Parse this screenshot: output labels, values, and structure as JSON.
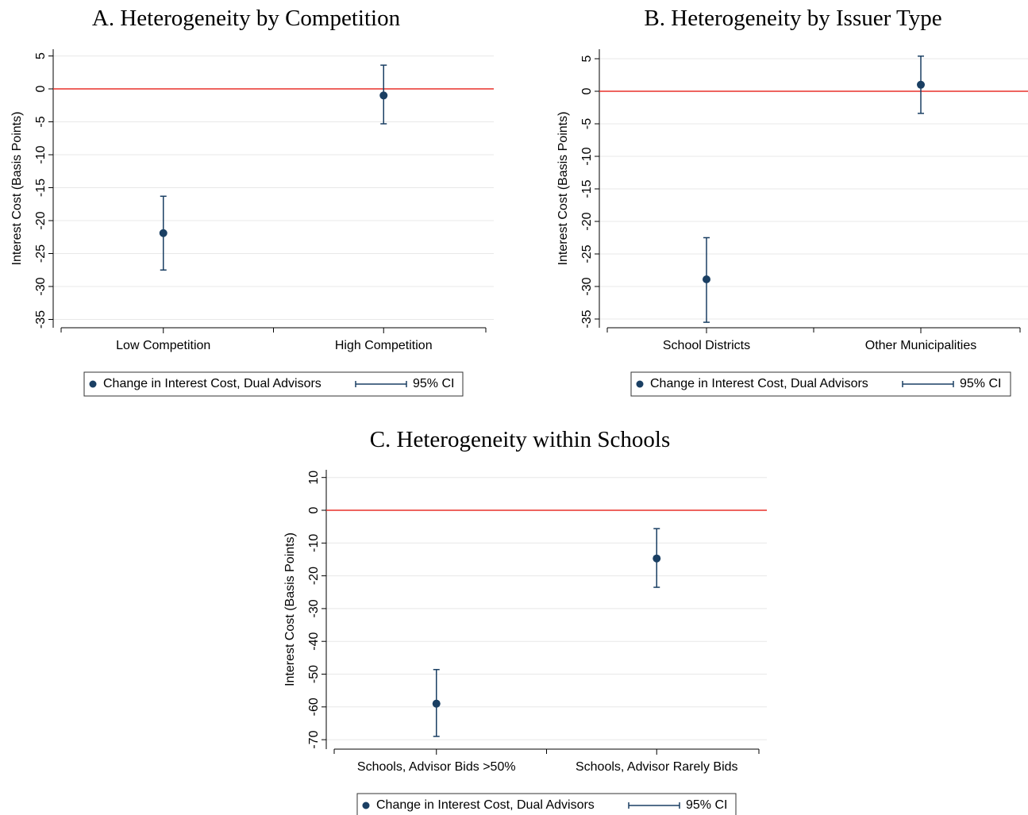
{
  "chart_data": [
    {
      "type": "scatter",
      "title": "A. Heterogeneity by Competition",
      "ylabel": "Interest Cost (Basis Points)",
      "categories": [
        "Low Competition",
        "High Competition"
      ],
      "yticks": [
        5,
        0,
        -5,
        -10,
        -15,
        -20,
        -25,
        -30,
        -35
      ],
      "ylim": [
        -36,
        6
      ],
      "estimates": [
        -21.9,
        -1.0
      ],
      "ci_low": [
        -27.5,
        -5.3
      ],
      "ci_high": [
        -16.3,
        3.6
      ],
      "reference_line": 0,
      "legend": {
        "point_label": "Change in Interest Cost, Dual Advisors",
        "ci_label": "95% CI"
      }
    },
    {
      "type": "scatter",
      "title": "B. Heterogeneity by Issuer Type",
      "ylabel": "Interest Cost (Basis Points)",
      "categories": [
        "School Districts",
        "Other Municipalities"
      ],
      "yticks": [
        5,
        0,
        -5,
        -10,
        -15,
        -20,
        -25,
        -30,
        -35
      ],
      "ylim": [
        -36,
        6
      ],
      "estimates": [
        -28.9,
        1.0
      ],
      "ci_low": [
        -35.5,
        -3.4
      ],
      "ci_high": [
        -22.5,
        5.4
      ],
      "reference_line": 0,
      "legend": {
        "point_label": "Change in Interest Cost, Dual Advisors",
        "ci_label": "95% CI"
      }
    },
    {
      "type": "scatter",
      "title": "C. Heterogeneity within Schools",
      "ylabel": "Interest Cost (Basis Points)",
      "categories": [
        "Schools, Advisor Bids >50%",
        "Schools, Advisor Rarely Bids"
      ],
      "yticks": [
        10,
        0,
        -10,
        -20,
        -30,
        -40,
        -50,
        -60,
        -70
      ],
      "ylim": [
        -72,
        12
      ],
      "estimates": [
        -59.0,
        -14.7
      ],
      "ci_low": [
        -69.0,
        -23.5
      ],
      "ci_high": [
        -48.6,
        -5.6
      ],
      "reference_line": 0,
      "legend": {
        "point_label": "Change in Interest Cost, Dual Advisors",
        "ci_label": "95% CI"
      }
    }
  ],
  "colors": {
    "marker": "#1a3f63",
    "reference_line": "#e8302a",
    "grid": "#e8e8e8",
    "axis": "#000000"
  }
}
